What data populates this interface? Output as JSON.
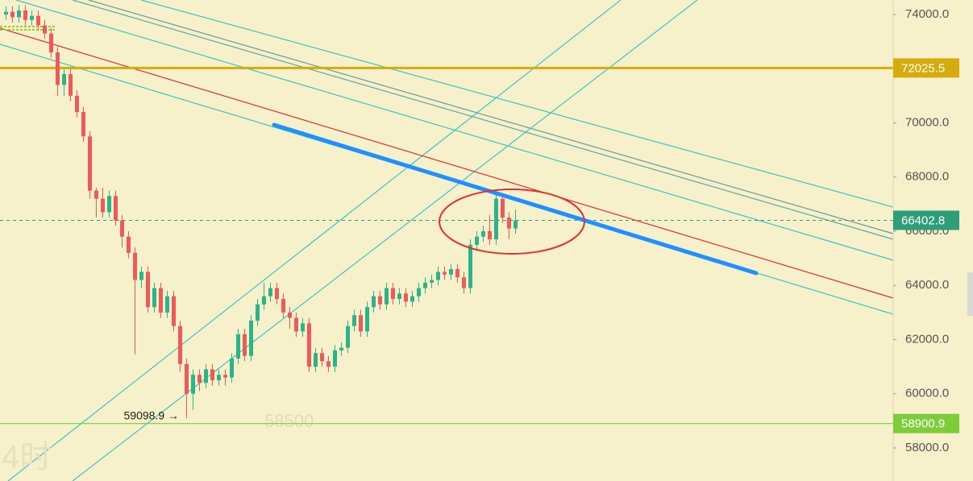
{
  "chart_data": {
    "type": "candlestick",
    "ylim": [
      56780,
      74535
    ],
    "yticks": [
      {
        "value": 58000,
        "label": "58000.0"
      },
      {
        "value": 60000,
        "label": "60000.0"
      },
      {
        "value": 62000,
        "label": "62000.0"
      },
      {
        "value": 64000,
        "label": "64000.0"
      },
      {
        "value": 66000,
        "label": "66000.0"
      },
      {
        "value": 68000,
        "label": "68000.0"
      },
      {
        "value": 70000,
        "label": "70000.0"
      },
      {
        "value": 72000,
        "label": "72000.0"
      },
      {
        "value": 74000,
        "label": "74000.0"
      }
    ],
    "up_color": "#2bb38a",
    "down_color": "#ee5a5a",
    "open": [
      74000,
      74100,
      73900,
      74150,
      73800,
      73950,
      73600,
      73300,
      72600,
      71400,
      71800,
      71000,
      70400,
      69500,
      67500,
      67200,
      66700,
      67300,
      66400,
      65800,
      65200,
      64200,
      64500,
      63200,
      63900,
      63000,
      63600,
      62500,
      61100,
      60000,
      60700,
      60400,
      60900,
      60500,
      60700,
      60600,
      61300,
      62200,
      61400,
      62700,
      63300,
      63600,
      63900,
      63500,
      63000,
      62800,
      62300,
      62600,
      61000,
      61500,
      61200,
      61000,
      61600,
      61700,
      62500,
      62900,
      62300,
      63200,
      63600,
      63300,
      63900,
      63500,
      63700,
      63400,
      63600,
      63900,
      64100,
      64200,
      64500,
      64400,
      64600,
      64300,
      63900,
      65500,
      65800,
      66000,
      65700,
      67200,
      66500,
      66100
    ],
    "high": [
      74300,
      74300,
      74350,
      74350,
      74150,
      74150,
      73800,
      73500,
      72800,
      72000,
      72000,
      71200,
      70600,
      69700,
      67600,
      67600,
      67500,
      67500,
      66600,
      66000,
      65400,
      64700,
      64700,
      64100,
      64100,
      63800,
      63800,
      62700,
      61300,
      60900,
      60900,
      61100,
      61100,
      60900,
      60900,
      61500,
      62400,
      62400,
      62900,
      63500,
      64100,
      64100,
      64100,
      63700,
      63200,
      63000,
      62800,
      62800,
      61700,
      61700,
      61400,
      61800,
      61900,
      62700,
      63100,
      63100,
      63400,
      63800,
      63800,
      64100,
      64100,
      63900,
      63900,
      63800,
      64100,
      64300,
      64400,
      64700,
      64700,
      64800,
      64800,
      64500,
      65700,
      66000,
      66200,
      66600,
      67400,
      67300,
      66700,
      66800
    ],
    "low": [
      73800,
      73700,
      73700,
      73600,
      73600,
      73400,
      73100,
      72400,
      71000,
      71000,
      70800,
      70200,
      69300,
      67200,
      66500,
      66500,
      66500,
      66200,
      65400,
      65000,
      61450,
      63900,
      63000,
      63000,
      62800,
      62800,
      62300,
      60800,
      59098.9,
      59400,
      60100,
      60200,
      60300,
      60300,
      60300,
      60400,
      61100,
      61200,
      61200,
      62500,
      63100,
      63400,
      63300,
      62800,
      62400,
      62100,
      62100,
      60800,
      60800,
      61000,
      60800,
      60800,
      61400,
      61500,
      62300,
      62100,
      62100,
      63000,
      63100,
      63100,
      63300,
      63300,
      63200,
      63200,
      63400,
      63700,
      63900,
      64000,
      64200,
      64200,
      64100,
      63700,
      63700,
      65300,
      65600,
      65500,
      65500,
      66300,
      65700,
      65900
    ],
    "close": [
      74100,
      73900,
      74150,
      73800,
      73950,
      73600,
      73300,
      72600,
      71400,
      71800,
      71000,
      70400,
      69500,
      67500,
      67200,
      66700,
      67300,
      66400,
      65800,
      65200,
      64200,
      64500,
      63200,
      63900,
      63000,
      63600,
      62500,
      61100,
      60000,
      60700,
      60400,
      60900,
      60500,
      60700,
      60600,
      61300,
      62200,
      61400,
      62700,
      63300,
      63600,
      63900,
      63500,
      63000,
      62800,
      62300,
      62600,
      61000,
      61500,
      61200,
      61000,
      61600,
      61700,
      62500,
      62900,
      62300,
      63200,
      63600,
      63300,
      63900,
      63500,
      63700,
      63400,
      63600,
      63900,
      64100,
      64200,
      64500,
      64400,
      64600,
      64300,
      63900,
      65500,
      65800,
      66000,
      65700,
      67200,
      66500,
      66100,
      66402.8
    ],
    "price_lines": [
      {
        "value": 72025.5,
        "color": "#d4ac0d",
        "style": "solid"
      },
      {
        "value": 66402.8,
        "color": "#2e9e7a",
        "style": "dashed"
      },
      {
        "value": 58900.9,
        "color": "#7dcc3a",
        "style": "solid"
      }
    ],
    "low_marker": {
      "value": 59098.9,
      "label": "59098.9 →"
    },
    "watermarks": [
      "58500",
      "4时"
    ]
  }
}
